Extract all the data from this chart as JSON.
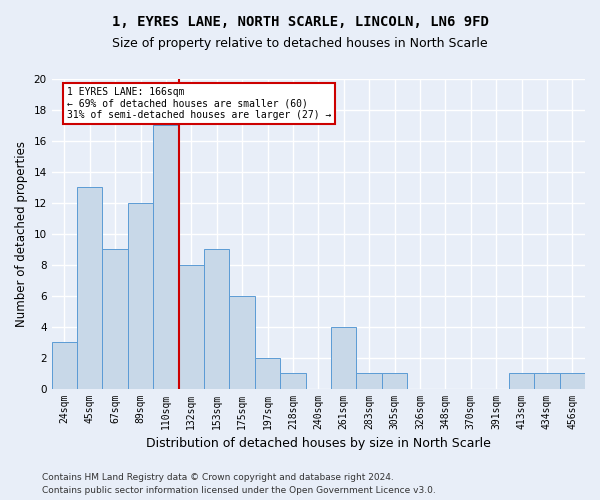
{
  "title_line1": "1, EYRES LANE, NORTH SCARLE, LINCOLN, LN6 9FD",
  "title_line2": "Size of property relative to detached houses in North Scarle",
  "xlabel": "Distribution of detached houses by size in North Scarle",
  "ylabel": "Number of detached properties",
  "footer_line1": "Contains HM Land Registry data © Crown copyright and database right 2024.",
  "footer_line2": "Contains public sector information licensed under the Open Government Licence v3.0.",
  "categories": [
    "24sqm",
    "45sqm",
    "67sqm",
    "89sqm",
    "110sqm",
    "132sqm",
    "153sqm",
    "175sqm",
    "197sqm",
    "218sqm",
    "240sqm",
    "261sqm",
    "283sqm",
    "305sqm",
    "326sqm",
    "348sqm",
    "370sqm",
    "391sqm",
    "413sqm",
    "434sqm",
    "456sqm"
  ],
  "values": [
    3,
    13,
    9,
    12,
    17,
    8,
    9,
    6,
    2,
    1,
    0,
    4,
    1,
    1,
    0,
    0,
    0,
    0,
    1,
    1,
    1
  ],
  "bar_color": "#c8d8e8",
  "bar_edge_color": "#5b9bd5",
  "vline_x": 4.5,
  "vline_color": "#cc0000",
  "annotation_text": "1 EYRES LANE: 166sqm\n← 69% of detached houses are smaller (60)\n31% of semi-detached houses are larger (27) →",
  "annotation_box_color": "#ffffff",
  "annotation_box_edge_color": "#cc0000",
  "ylim": [
    0,
    20
  ],
  "yticks": [
    0,
    2,
    4,
    6,
    8,
    10,
    12,
    14,
    16,
    18,
    20
  ],
  "bg_color": "#e8eef8",
  "plot_bg_color": "#e8eef8",
  "grid_color": "#ffffff",
  "title_fontsize": 10,
  "subtitle_fontsize": 9,
  "tick_fontsize": 7,
  "ylabel_fontsize": 8.5,
  "xlabel_fontsize": 9,
  "footer_fontsize": 6.5
}
